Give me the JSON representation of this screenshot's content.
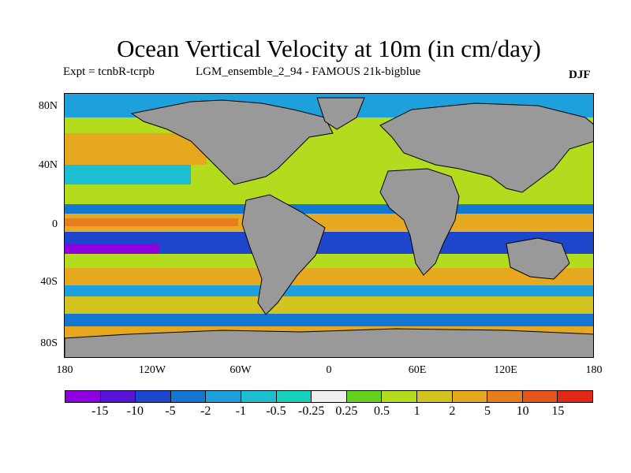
{
  "header": {
    "title": "Ocean Vertical Velocity at 10m (in cm/day)",
    "experiment": "Expt = tcnbR-tcrpb",
    "model_run": "LGM_ensemble_2_94 - FAMOUS 21k-bigblue",
    "season": "DJF"
  },
  "map": {
    "projection": "cylindrical equidistant",
    "lat_labels": [
      "80N",
      "40N",
      "0",
      "40S",
      "80S"
    ],
    "lon_labels": [
      "180",
      "120W",
      "60W",
      "0",
      "60E",
      "120E",
      "180"
    ],
    "land_color": "#999999"
  },
  "colorbar": {
    "colors": [
      "#8f00e0",
      "#5a14d6",
      "#1e46cc",
      "#1478d2",
      "#1ea0dc",
      "#1ebed2",
      "#14d2be",
      "#eeeeee",
      "#62d21e",
      "#b4dc1e",
      "#d2c31e",
      "#e6a81e",
      "#e67d1e",
      "#e6551e",
      "#e02814"
    ],
    "labels": [
      "-15",
      "-10",
      "-5",
      "-2",
      "-1",
      "-0.5",
      "-0.25",
      "0.25",
      "0.5",
      "1",
      "2",
      "5",
      "10",
      "15"
    ]
  }
}
